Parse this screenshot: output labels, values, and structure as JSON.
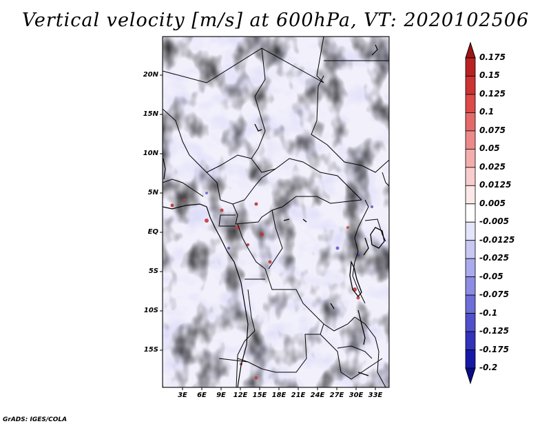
{
  "title": "Vertical velocity [m/s] at 600hPa, VT: 2020102506",
  "latitude_labels": [
    "20N",
    "15N",
    "10N",
    "5N",
    "EQ",
    "5S",
    "10S",
    "15S"
  ],
  "longitude_labels": [
    "3E",
    "6E",
    "9E",
    "12E",
    "15E",
    "18E",
    "21E",
    "24E",
    "27E",
    "30E",
    "33E"
  ],
  "colorbar": {
    "labels": [
      "0.175",
      "0.15",
      "0.125",
      "0.1",
      "0.075",
      "0.05",
      "0.025",
      "0.0125",
      "0.005",
      "-0.005",
      "-0.0125",
      "-0.025",
      "-0.05",
      "-0.075",
      "-0.1",
      "-0.125",
      "-0.175",
      "-0.2"
    ],
    "colors": [
      "#a01414",
      "#b82222",
      "#cc3333",
      "#dc4a4a",
      "#e46a6a",
      "#ec8a8a",
      "#f4adad",
      "#f9cdcd",
      "#fde8e8",
      "#ffffff",
      "#e4e4fa",
      "#c8c8f4",
      "#aaaaee",
      "#8c8ce4",
      "#6e6ed8",
      "#5050cc",
      "#3232bc",
      "#1818a8",
      "#0a0a8c"
    ]
  },
  "credit": "GrADS: IGES/COLA"
}
